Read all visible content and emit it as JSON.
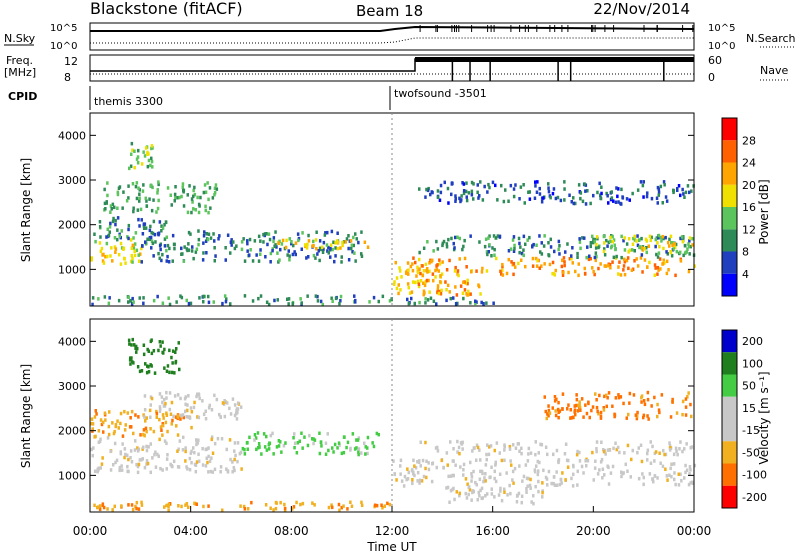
{
  "header": {
    "station": "Blackstone (fitACF)",
    "beam": "Beam 18",
    "date": "22/Nov/2014"
  },
  "status_panels": {
    "nsky_label": "N.Sky",
    "nsky_ticks": [
      "10^5",
      "10^0"
    ],
    "nsearch_label": "N.Search",
    "nsearch_ticks": [
      "10^5",
      "10^0"
    ],
    "freq_label": "Freq.",
    "freq_unit": "[MHz]",
    "freq_ticks": [
      "12",
      "8"
    ],
    "nave_label": "Nave",
    "nave_ticks": [
      "60",
      "0"
    ],
    "cpid_label": "CPID",
    "cpid_segments": [
      {
        "label": "themis 3300",
        "start_hour": 0
      },
      {
        "label": "twofsound -3501",
        "start_hour": 12
      }
    ]
  },
  "time_axis": {
    "label": "Time UT",
    "ticks": [
      "00:00",
      "04:00",
      "08:00",
      "12:00",
      "16:00",
      "20:00",
      "00:00"
    ]
  },
  "colors": {
    "power_scale": [
      "#0000ff",
      "#1f3fbf",
      "#2e8b57",
      "#5cc45c",
      "#f0e000",
      "#ffa500",
      "#ff6000",
      "#ff0000"
    ],
    "velocity_scale": [
      "#0000cc",
      "#1f7f1f",
      "#44cc44",
      "#c8c8c8",
      "#c8c8c8",
      "#f0b020",
      "#ff7000",
      "#ff0000"
    ]
  },
  "chart_data": [
    {
      "type": "heatmap",
      "panel": "power",
      "ylabel": "Slant Range [km]",
      "xlabel": "Time UT",
      "xlim_hours": [
        0,
        24
      ],
      "ylim": [
        180,
        4500
      ],
      "yticks": [
        1000,
        2000,
        3000,
        4000
      ],
      "colorbar": {
        "label": "Power [dB]",
        "ticks": [
          "4",
          "8",
          "12",
          "16",
          "20",
          "24",
          "28"
        ],
        "range": [
          0,
          32
        ]
      },
      "bands": [
        {
          "t": [
            0.0,
            2.0
          ],
          "r": [
            1100,
            1700
          ],
          "level": 18
        },
        {
          "t": [
            0.0,
            3.0
          ],
          "r": [
            1700,
            2200
          ],
          "level": 9
        },
        {
          "t": [
            0.5,
            5.0
          ],
          "r": [
            2300,
            3000
          ],
          "level": 12
        },
        {
          "t": [
            1.5,
            2.5
          ],
          "r": [
            3300,
            3900
          ],
          "level": 13
        },
        {
          "t": [
            2.0,
            11.0
          ],
          "r": [
            1200,
            1900
          ],
          "level": 9
        },
        {
          "t": [
            7.0,
            11.0
          ],
          "r": [
            1500,
            1700
          ],
          "level": 19
        },
        {
          "t": [
            0.0,
            12.0
          ],
          "r": [
            250,
            450
          ],
          "level": 10
        },
        {
          "t": [
            12.0,
            14.0
          ],
          "r": [
            500,
            1200
          ],
          "level": 20
        },
        {
          "t": [
            12.5,
            24.0
          ],
          "r": [
            900,
            1300
          ],
          "level": 23
        },
        {
          "t": [
            13.0,
            15.5
          ],
          "r": [
            450,
            800
          ],
          "level": 22
        },
        {
          "t": [
            13.0,
            24.0
          ],
          "r": [
            1300,
            1800
          ],
          "level": 10
        },
        {
          "t": [
            20.0,
            24.0
          ],
          "r": [
            1400,
            1800
          ],
          "level": 17
        },
        {
          "t": [
            12.5,
            16.0
          ],
          "r": [
            250,
            400
          ],
          "level": 9
        },
        {
          "t": [
            13.0,
            24.0
          ],
          "r": [
            2500,
            3000
          ],
          "level": 7
        }
      ]
    },
    {
      "type": "heatmap",
      "panel": "velocity",
      "ylabel": "Slant Range [km]",
      "xlabel": "Time UT",
      "xlim_hours": [
        0,
        24
      ],
      "ylim": [
        180,
        4500
      ],
      "yticks": [
        1000,
        2000,
        3000,
        4000
      ],
      "colorbar": {
        "label": "Velocity [m s⁻¹]",
        "ticks": [
          "200",
          "100",
          "50",
          "15",
          "-15",
          "-50",
          "-100",
          "-200"
        ],
        "range": [
          -250,
          250
        ]
      },
      "bands": [
        {
          "t": [
            0.0,
            6.0
          ],
          "r": [
            1100,
            1900
          ],
          "velocity": 0
        },
        {
          "t": [
            0.0,
            4.0
          ],
          "r": [
            1900,
            2500
          ],
          "velocity": -40
        },
        {
          "t": [
            2.0,
            6.0
          ],
          "r": [
            2300,
            2900
          ],
          "velocity": 0
        },
        {
          "t": [
            1.5,
            3.5
          ],
          "r": [
            3300,
            4100
          ],
          "velocity": 150
        },
        {
          "t": [
            6.0,
            11.5
          ],
          "r": [
            1500,
            2000
          ],
          "velocity": 60
        },
        {
          "t": [
            0.0,
            12.0
          ],
          "r": [
            250,
            450
          ],
          "velocity": -40
        },
        {
          "t": [
            12.0,
            24.0
          ],
          "r": [
            800,
            1400
          ],
          "velocity": 0
        },
        {
          "t": [
            13.0,
            24.0
          ],
          "r": [
            1500,
            1800
          ],
          "velocity": 0
        },
        {
          "t": [
            14.0,
            18.0
          ],
          "r": [
            400,
            800
          ],
          "velocity": 0
        },
        {
          "t": [
            18.0,
            24.0
          ],
          "r": [
            2300,
            2900
          ],
          "velocity": -60
        }
      ]
    }
  ]
}
